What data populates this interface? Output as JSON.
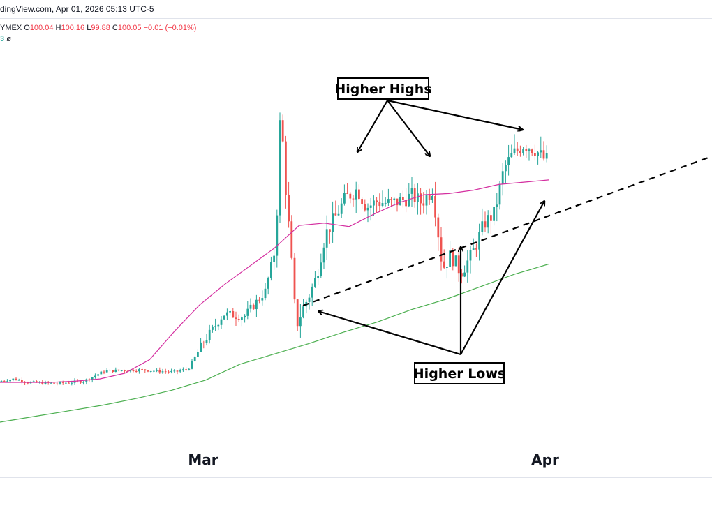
{
  "header": {
    "text": "dingView.com, Apr 01, 2026 05:13 UTC-5"
  },
  "legend": {
    "symbol": "YMEX",
    "o_label": "O",
    "o_value": "100.04",
    "h_label": "H",
    "h_value": "100.16",
    "l_label": "L",
    "l_value": "99.88",
    "c_label": "C",
    "c_value": "100.05",
    "change": "−0.01 (−0.01%)",
    "indicator_value": "3",
    "indicator_symbol": "ø"
  },
  "chart_data": {
    "type": "line",
    "x_ticks": [
      "Mar",
      "Apr"
    ],
    "annotations": [
      "Higher Highs",
      "Higher Lows"
    ],
    "series": [
      {
        "color": "#d42fa0",
        "values": [
          100.0,
          100.0,
          100.0,
          100.1,
          100.3,
          100.8,
          102.0,
          104.5,
          106.8,
          108.6,
          110.2,
          111.8,
          113.8,
          114.0,
          113.7,
          114.8,
          115.8,
          116.5,
          116.6,
          116.9,
          117.4,
          117.6,
          117.8
        ]
      },
      {
        "color": "#4caf50",
        "values": [
          96.5,
          97.0,
          97.5,
          98.0,
          98.6,
          99.3,
          100.2,
          101.6,
          102.5,
          103.4,
          104.4,
          105.3,
          106.4,
          107.3,
          108.4,
          109.5,
          110.4
        ]
      }
    ],
    "colors": {
      "up": "#26a69a",
      "down": "#ef5350"
    }
  }
}
